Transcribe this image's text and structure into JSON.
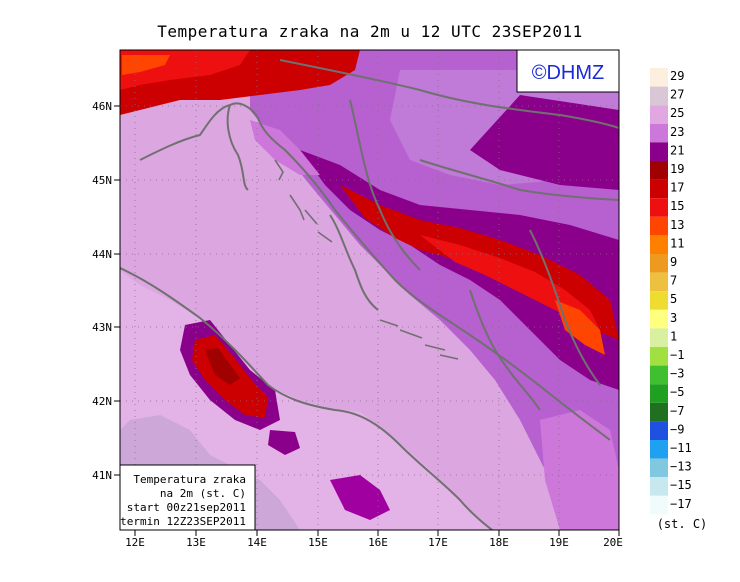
{
  "title": "Temperatura zraka na 2m u 12 UTC 23SEP2011",
  "watermark": "©DHMZ",
  "info_box": {
    "line1": "Temperatura zraka",
    "line2": "na 2m (st. C)",
    "line3": "start 00z21sep2011",
    "line4": "termin 12Z23SEP2011"
  },
  "lat_labels": [
    "46N",
    "45N",
    "44N",
    "43N",
    "42N",
    "41N"
  ],
  "lon_labels": [
    "12E",
    "13E",
    "14E",
    "15E",
    "16E",
    "17E",
    "18E",
    "19E",
    "20E"
  ],
  "legend": {
    "unit": "(st. C)",
    "labels": [
      "29",
      "27",
      "25",
      "23",
      "21",
      "19",
      "17",
      "15",
      "13",
      "11",
      "9",
      "7",
      "5",
      "3",
      "1",
      "−1",
      "−3",
      "−5",
      "−7",
      "−9",
      "−11",
      "−13",
      "−15",
      "−17"
    ],
    "colors": [
      "#fcefe0",
      "#d9c7d6",
      "#e0a7e0",
      "#cc77d9",
      "#8b008b",
      "#a00000",
      "#cc0000",
      "#ee1010",
      "#ff4500",
      "#ff7f00",
      "#ee9a20",
      "#eec040",
      "#eedd30",
      "#ffff80",
      "#d8f0a0",
      "#a0e040",
      "#40c030",
      "#20a020",
      "#207020",
      "#2050e0",
      "#20a0f0",
      "#80c8e0",
      "#c8e8f0",
      "#f0fcfc"
    ]
  },
  "colors": {
    "sea": "#dca6e0",
    "land": "#b760d0",
    "coast": "#707070"
  }
}
